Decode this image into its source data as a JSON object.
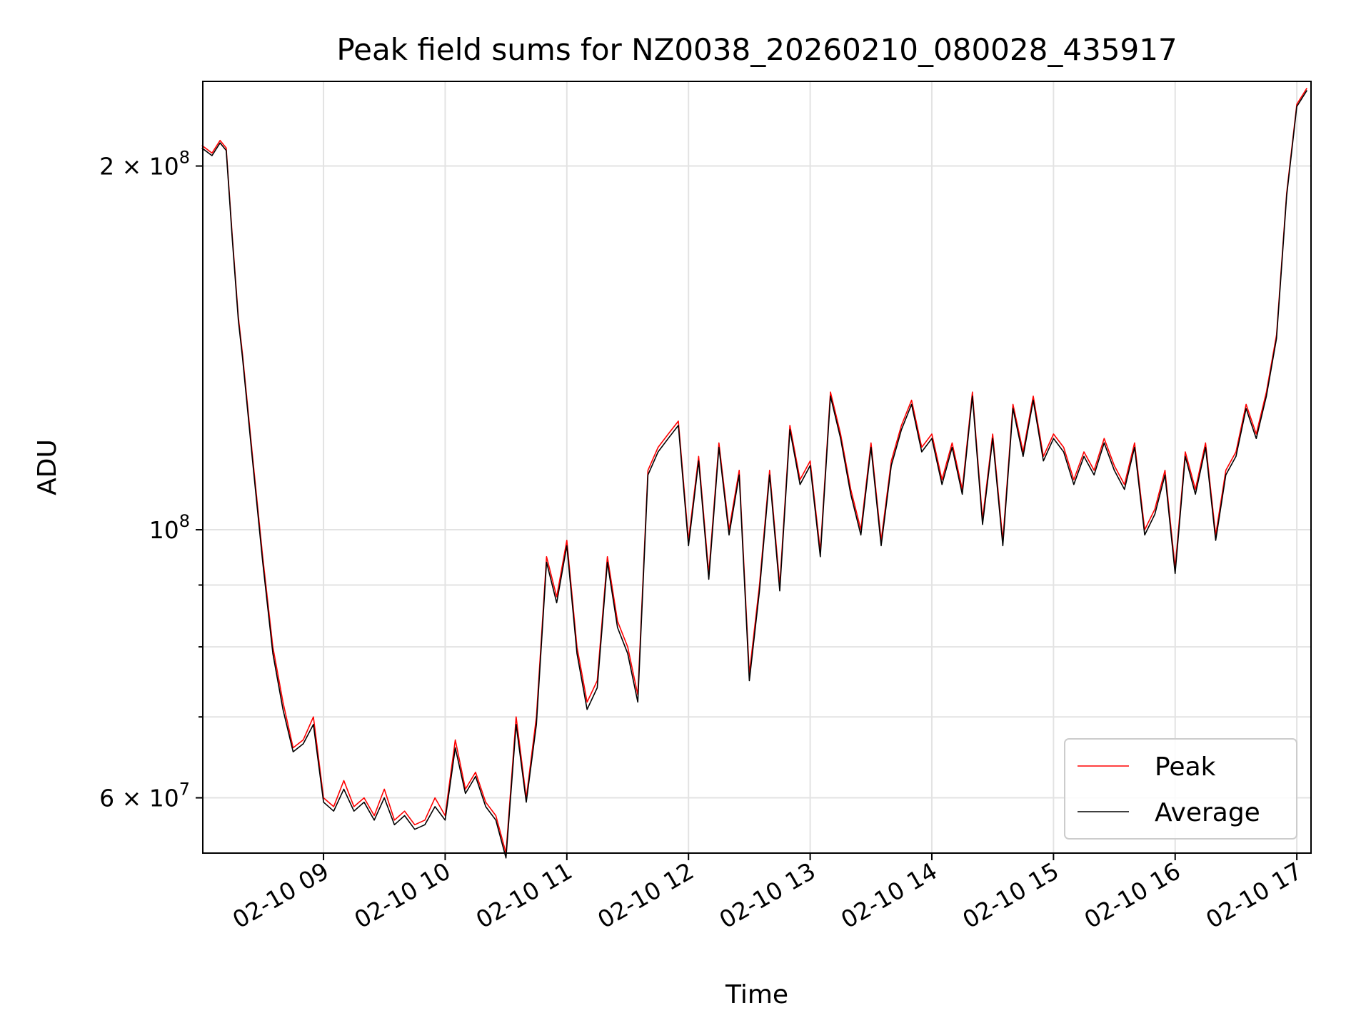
{
  "chart_data": {
    "type": "line",
    "title": "Peak field sums for NZ0038_20260210_080028_435917",
    "xlabel": "Time",
    "ylabel": "ADU",
    "yscale": "log",
    "xlim": [
      "2026-02-10 08:00:28",
      "2026-02-10 17:07:00"
    ],
    "ylim": [
      54000000,
      235000000
    ],
    "grid": true,
    "legend_position": "lower right",
    "x_ticks": [
      {
        "value": "2026-02-10 09:00",
        "label": "02-10 09"
      },
      {
        "value": "2026-02-10 10:00",
        "label": "02-10 10"
      },
      {
        "value": "2026-02-10 11:00",
        "label": "02-10 11"
      },
      {
        "value": "2026-02-10 12:00",
        "label": "02-10 12"
      },
      {
        "value": "2026-02-10 13:00",
        "label": "02-10 13"
      },
      {
        "value": "2026-02-10 14:00",
        "label": "02-10 14"
      },
      {
        "value": "2026-02-10 15:00",
        "label": "02-10 15"
      },
      {
        "value": "2026-02-10 16:00",
        "label": "02-10 16"
      },
      {
        "value": "2026-02-10 17:00",
        "label": "02-10 17"
      }
    ],
    "y_ticks": [
      {
        "value": 200000000,
        "mantissa": "2",
        "times": "×",
        "base": "10",
        "exp": "8"
      },
      {
        "value": 100000000,
        "mantissa": "",
        "times": "",
        "base": "10",
        "exp": "8"
      },
      {
        "value": 60000000,
        "mantissa": "6",
        "times": "×",
        "base": "10",
        "exp": "7"
      }
    ],
    "y_minor_ticks": [
      70000000,
      80000000,
      90000000
    ],
    "series": [
      {
        "name": "Peak",
        "color": "#ff0000",
        "x": [
          "2026-02-10 08:00",
          "2026-02-10 08:05",
          "2026-02-10 08:09",
          "2026-02-10 08:12",
          "2026-02-10 08:15",
          "2026-02-10 08:18",
          "2026-02-10 08:20",
          "2026-02-10 08:25",
          "2026-02-10 08:30",
          "2026-02-10 08:35",
          "2026-02-10 08:40",
          "2026-02-10 08:45",
          "2026-02-10 08:50",
          "2026-02-10 08:55",
          "2026-02-10 09:00",
          "2026-02-10 09:05",
          "2026-02-10 09:10",
          "2026-02-10 09:15",
          "2026-02-10 09:20",
          "2026-02-10 09:25",
          "2026-02-10 09:30",
          "2026-02-10 09:35",
          "2026-02-10 09:40",
          "2026-02-10 09:45",
          "2026-02-10 09:50",
          "2026-02-10 09:55",
          "2026-02-10 10:00",
          "2026-02-10 10:05",
          "2026-02-10 10:10",
          "2026-02-10 10:15",
          "2026-02-10 10:20",
          "2026-02-10 10:25",
          "2026-02-10 10:30",
          "2026-02-10 10:35",
          "2026-02-10 10:40",
          "2026-02-10 10:45",
          "2026-02-10 10:50",
          "2026-02-10 10:55",
          "2026-02-10 11:00",
          "2026-02-10 11:05",
          "2026-02-10 11:10",
          "2026-02-10 11:15",
          "2026-02-10 11:20",
          "2026-02-10 11:25",
          "2026-02-10 11:30",
          "2026-02-10 11:35",
          "2026-02-10 11:40",
          "2026-02-10 11:45",
          "2026-02-10 11:50",
          "2026-02-10 11:55",
          "2026-02-10 12:00",
          "2026-02-10 12:05",
          "2026-02-10 12:10",
          "2026-02-10 12:15",
          "2026-02-10 12:20",
          "2026-02-10 12:25",
          "2026-02-10 12:30",
          "2026-02-10 12:35",
          "2026-02-10 12:40",
          "2026-02-10 12:45",
          "2026-02-10 12:50",
          "2026-02-10 12:55",
          "2026-02-10 13:00",
          "2026-02-10 13:05",
          "2026-02-10 13:10",
          "2026-02-10 13:15",
          "2026-02-10 13:20",
          "2026-02-10 13:25",
          "2026-02-10 13:30",
          "2026-02-10 13:35",
          "2026-02-10 13:40",
          "2026-02-10 13:45",
          "2026-02-10 13:50",
          "2026-02-10 13:55",
          "2026-02-10 14:00",
          "2026-02-10 14:05",
          "2026-02-10 14:10",
          "2026-02-10 14:15",
          "2026-02-10 14:20",
          "2026-02-10 14:25",
          "2026-02-10 14:30",
          "2026-02-10 14:35",
          "2026-02-10 14:40",
          "2026-02-10 14:45",
          "2026-02-10 14:50",
          "2026-02-10 14:55",
          "2026-02-10 15:00",
          "2026-02-10 15:05",
          "2026-02-10 15:10",
          "2026-02-10 15:15",
          "2026-02-10 15:20",
          "2026-02-10 15:25",
          "2026-02-10 15:30",
          "2026-02-10 15:35",
          "2026-02-10 15:40",
          "2026-02-10 15:45",
          "2026-02-10 15:50",
          "2026-02-10 15:55",
          "2026-02-10 16:00",
          "2026-02-10 16:05",
          "2026-02-10 16:10",
          "2026-02-10 16:15",
          "2026-02-10 16:20",
          "2026-02-10 16:25",
          "2026-02-10 16:30",
          "2026-02-10 16:35",
          "2026-02-10 16:40",
          "2026-02-10 16:45",
          "2026-02-10 16:50",
          "2026-02-10 16:55",
          "2026-02-10 17:00",
          "2026-02-10 17:05"
        ],
        "values": [
          208000000,
          205000000,
          210000000,
          207000000,
          175000000,
          150000000,
          140000000,
          115000000,
          95000000,
          80000000,
          72000000,
          66000000,
          67000000,
          70000000,
          60000000,
          59000000,
          62000000,
          59000000,
          60000000,
          58000000,
          61000000,
          57500000,
          58500000,
          57000000,
          57500000,
          60000000,
          58000000,
          67000000,
          61000000,
          63000000,
          59500000,
          58000000,
          54000000,
          70000000,
          60000000,
          70000000,
          95000000,
          88000000,
          98000000,
          80000000,
          72000000,
          75000000,
          95000000,
          84000000,
          80000000,
          73000000,
          112000000,
          117000000,
          120000000,
          123000000,
          98000000,
          115000000,
          92000000,
          118000000,
          100000000,
          112000000,
          76000000,
          90000000,
          112000000,
          90000000,
          122000000,
          110000000,
          114000000,
          96000000,
          130000000,
          120000000,
          108000000,
          100000000,
          118000000,
          98000000,
          114000000,
          122000000,
          128000000,
          117000000,
          120000000,
          110000000,
          118000000,
          108000000,
          130000000,
          102000000,
          120000000,
          98000000,
          127000000,
          116000000,
          129000000,
          115000000,
          120000000,
          117000000,
          110000000,
          116000000,
          112000000,
          119000000,
          113000000,
          109000000,
          118000000,
          100000000,
          104000000,
          112000000,
          93000000,
          116000000,
          108000000,
          118000000,
          99000000,
          112000000,
          116000000,
          127000000,
          120000000,
          130000000,
          145000000,
          190000000,
          225000000,
          232000000
        ]
      },
      {
        "name": "Average",
        "color": "#000000",
        "x": [
          "2026-02-10 08:00",
          "2026-02-10 08:05",
          "2026-02-10 08:09",
          "2026-02-10 08:12",
          "2026-02-10 08:15",
          "2026-02-10 08:18",
          "2026-02-10 08:20",
          "2026-02-10 08:25",
          "2026-02-10 08:30",
          "2026-02-10 08:35",
          "2026-02-10 08:40",
          "2026-02-10 08:45",
          "2026-02-10 08:50",
          "2026-02-10 08:55",
          "2026-02-10 09:00",
          "2026-02-10 09:05",
          "2026-02-10 09:10",
          "2026-02-10 09:15",
          "2026-02-10 09:20",
          "2026-02-10 09:25",
          "2026-02-10 09:30",
          "2026-02-10 09:35",
          "2026-02-10 09:40",
          "2026-02-10 09:45",
          "2026-02-10 09:50",
          "2026-02-10 09:55",
          "2026-02-10 10:00",
          "2026-02-10 10:05",
          "2026-02-10 10:10",
          "2026-02-10 10:15",
          "2026-02-10 10:20",
          "2026-02-10 10:25",
          "2026-02-10 10:30",
          "2026-02-10 10:35",
          "2026-02-10 10:40",
          "2026-02-10 10:45",
          "2026-02-10 10:50",
          "2026-02-10 10:55",
          "2026-02-10 11:00",
          "2026-02-10 11:05",
          "2026-02-10 11:10",
          "2026-02-10 11:15",
          "2026-02-10 11:20",
          "2026-02-10 11:25",
          "2026-02-10 11:30",
          "2026-02-10 11:35",
          "2026-02-10 11:40",
          "2026-02-10 11:45",
          "2026-02-10 11:50",
          "2026-02-10 11:55",
          "2026-02-10 12:00",
          "2026-02-10 12:05",
          "2026-02-10 12:10",
          "2026-02-10 12:15",
          "2026-02-10 12:20",
          "2026-02-10 12:25",
          "2026-02-10 12:30",
          "2026-02-10 12:35",
          "2026-02-10 12:40",
          "2026-02-10 12:45",
          "2026-02-10 12:50",
          "2026-02-10 12:55",
          "2026-02-10 13:00",
          "2026-02-10 13:05",
          "2026-02-10 13:10",
          "2026-02-10 13:15",
          "2026-02-10 13:20",
          "2026-02-10 13:25",
          "2026-02-10 13:30",
          "2026-02-10 13:35",
          "2026-02-10 13:40",
          "2026-02-10 13:45",
          "2026-02-10 13:50",
          "2026-02-10 13:55",
          "2026-02-10 14:00",
          "2026-02-10 14:05",
          "2026-02-10 14:10",
          "2026-02-10 14:15",
          "2026-02-10 14:20",
          "2026-02-10 14:25",
          "2026-02-10 14:30",
          "2026-02-10 14:35",
          "2026-02-10 14:40",
          "2026-02-10 14:45",
          "2026-02-10 14:50",
          "2026-02-10 14:55",
          "2026-02-10 15:00",
          "2026-02-10 15:05",
          "2026-02-10 15:10",
          "2026-02-10 15:15",
          "2026-02-10 15:20",
          "2026-02-10 15:25",
          "2026-02-10 15:30",
          "2026-02-10 15:35",
          "2026-02-10 15:40",
          "2026-02-10 15:45",
          "2026-02-10 15:50",
          "2026-02-10 15:55",
          "2026-02-10 16:00",
          "2026-02-10 16:05",
          "2026-02-10 16:10",
          "2026-02-10 16:15",
          "2026-02-10 16:20",
          "2026-02-10 16:25",
          "2026-02-10 16:30",
          "2026-02-10 16:35",
          "2026-02-10 16:40",
          "2026-02-10 16:45",
          "2026-02-10 16:50",
          "2026-02-10 16:55",
          "2026-02-10 17:00",
          "2026-02-10 17:05"
        ],
        "values": [
          207000000,
          204000000,
          209000000,
          206000000,
          174000000,
          149000000,
          139000000,
          114000000,
          94000000,
          79000000,
          71000000,
          65500000,
          66500000,
          69000000,
          59500000,
          58500000,
          61000000,
          58500000,
          59500000,
          57500000,
          60000000,
          57000000,
          58000000,
          56500000,
          57000000,
          59000000,
          57500000,
          66000000,
          60500000,
          62500000,
          59000000,
          57500000,
          53500000,
          69000000,
          59500000,
          69000000,
          94000000,
          87000000,
          97000000,
          79000000,
          71000000,
          74000000,
          94000000,
          83000000,
          79000000,
          72000000,
          111000000,
          116000000,
          119000000,
          122000000,
          97000000,
          114000000,
          91000000,
          117000000,
          99000000,
          111000000,
          75000000,
          89000000,
          111000000,
          89000000,
          121000000,
          109000000,
          113000000,
          95000000,
          129000000,
          119000000,
          107000000,
          99000000,
          117000000,
          97000000,
          113000000,
          121000000,
          127000000,
          116000000,
          119000000,
          109000000,
          117000000,
          107000000,
          129000000,
          101000000,
          119000000,
          97000000,
          126000000,
          115000000,
          128000000,
          114000000,
          119000000,
          116000000,
          109000000,
          115000000,
          111000000,
          118000000,
          112000000,
          108000000,
          117000000,
          99000000,
          103000000,
          111000000,
          92000000,
          115000000,
          107000000,
          117000000,
          98000000,
          111000000,
          115000000,
          126000000,
          119000000,
          129000000,
          144000000,
          189000000,
          224000000,
          231000000
        ]
      }
    ]
  }
}
